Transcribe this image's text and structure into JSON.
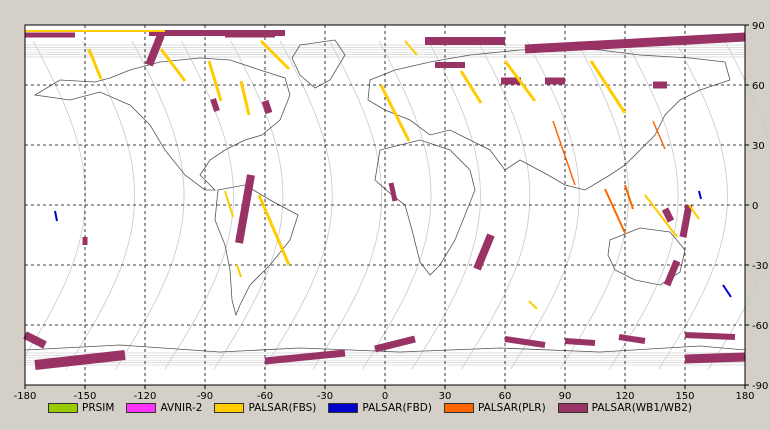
{
  "chart_data": {
    "type": "map",
    "projection": "equirectangular",
    "xlim": [
      -180,
      180
    ],
    "ylim": [
      -90,
      90
    ],
    "x_ticks": [
      "-180",
      "-150",
      "-120",
      "-90",
      "-60",
      "-30",
      "0",
      "30",
      "60",
      "90",
      "120",
      "150",
      "180"
    ],
    "y_ticks": [
      "90",
      "60",
      "30",
      "0",
      "-30",
      "-60",
      "-90"
    ],
    "grid": true,
    "legend": [
      {
        "label": "PRSIM",
        "color": "#99cc00"
      },
      {
        "label": "AVNIR-2",
        "color": "#ff33ff"
      },
      {
        "label": "PALSAR(FBS)",
        "color": "#ffcc00"
      },
      {
        "label": "PALSAR(FBD)",
        "color": "#0000cc"
      },
      {
        "label": "PALSAR(PLR)",
        "color": "#ff6600"
      },
      {
        "label": "PALSAR(WB1/WB2)",
        "color": "#993366"
      }
    ],
    "swaths": [
      {
        "mode": "PALSAR(WB1/WB2)",
        "path": [
          [
            -180,
            85
          ],
          [
            -155,
            85
          ]
        ],
        "width": 5
      },
      {
        "mode": "PALSAR(WB1/WB2)",
        "path": [
          [
            -118,
            86
          ],
          [
            -50,
            86
          ]
        ],
        "width": 6
      },
      {
        "mode": "PALSAR(WB1/WB2)",
        "path": [
          [
            -112,
            85
          ],
          [
            -118,
            70
          ]
        ],
        "width": 8
      },
      {
        "mode": "PALSAR(WB1/WB2)",
        "path": [
          [
            -80,
            85
          ],
          [
            -55,
            85
          ]
        ],
        "width": 5
      },
      {
        "mode": "PALSAR(WB1/WB2)",
        "path": [
          [
            -86,
            53
          ],
          [
            -84,
            47
          ]
        ],
        "width": 6
      },
      {
        "mode": "PALSAR(WB1/WB2)",
        "path": [
          [
            -60,
            52
          ],
          [
            -58,
            46
          ]
        ],
        "width": 7
      },
      {
        "mode": "PALSAR(WB1/WB2)",
        "path": [
          [
            -67,
            15
          ],
          [
            -73,
            -19
          ]
        ],
        "width": 8
      },
      {
        "mode": "PALSAR(WB1/WB2)",
        "path": [
          [
            -150,
            -16
          ],
          [
            -150,
            -20
          ]
        ],
        "width": 5
      },
      {
        "mode": "PALSAR(WB1/WB2)",
        "path": [
          [
            53,
            -15
          ],
          [
            46,
            -32
          ]
        ],
        "width": 8
      },
      {
        "mode": "PALSAR(WB1/WB2)",
        "path": [
          [
            20,
            82
          ],
          [
            60,
            82
          ]
        ],
        "width": 8
      },
      {
        "mode": "PALSAR(WB1/WB2)",
        "path": [
          [
            25,
            70
          ],
          [
            40,
            70
          ]
        ],
        "width": 6
      },
      {
        "mode": "PALSAR(WB1/WB2)",
        "path": [
          [
            58,
            62
          ],
          [
            68,
            62
          ]
        ],
        "width": 7
      },
      {
        "mode": "PALSAR(WB1/WB2)",
        "path": [
          [
            80,
            62
          ],
          [
            90,
            62
          ]
        ],
        "width": 7
      },
      {
        "mode": "PALSAR(WB1/WB2)",
        "path": [
          [
            70,
            78
          ],
          [
            180,
            84
          ]
        ],
        "width": 9
      },
      {
        "mode": "PALSAR(WB1/WB2)",
        "path": [
          [
            134,
            60
          ],
          [
            141,
            60
          ]
        ],
        "width": 7
      },
      {
        "mode": "PALSAR(WB1/WB2)",
        "path": [
          [
            140,
            -2
          ],
          [
            143,
            -8
          ]
        ],
        "width": 7
      },
      {
        "mode": "PALSAR(WB1/WB2)",
        "path": [
          [
            152,
            0
          ],
          [
            149,
            -16
          ]
        ],
        "width": 7
      },
      {
        "mode": "PALSAR(WB1/WB2)",
        "path": [
          [
            146,
            -28
          ],
          [
            141,
            -40
          ]
        ],
        "width": 7
      },
      {
        "mode": "PALSAR(WB1/WB2)",
        "path": [
          [
            3,
            11
          ],
          [
            5,
            2
          ]
        ],
        "width": 5
      },
      {
        "mode": "PALSAR(WB1/WB2)",
        "path": [
          [
            -180,
            -65
          ],
          [
            -170,
            -70
          ]
        ],
        "width": 8
      },
      {
        "mode": "PALSAR(WB1/WB2)",
        "path": [
          [
            -175,
            -80
          ],
          [
            -130,
            -75
          ]
        ],
        "width": 10
      },
      {
        "mode": "PALSAR(WB1/WB2)",
        "path": [
          [
            -60,
            -78
          ],
          [
            -20,
            -74
          ]
        ],
        "width": 7
      },
      {
        "mode": "PALSAR(WB1/WB2)",
        "path": [
          [
            -5,
            -72
          ],
          [
            15,
            -67
          ]
        ],
        "width": 7
      },
      {
        "mode": "PALSAR(WB1/WB2)",
        "path": [
          [
            60,
            -67
          ],
          [
            80,
            -70
          ]
        ],
        "width": 6
      },
      {
        "mode": "PALSAR(WB1/WB2)",
        "path": [
          [
            90,
            -68
          ],
          [
            105,
            -69
          ]
        ],
        "width": 6
      },
      {
        "mode": "PALSAR(WB1/WB2)",
        "path": [
          [
            117,
            -66
          ],
          [
            130,
            -68
          ]
        ],
        "width": 6
      },
      {
        "mode": "PALSAR(WB1/WB2)",
        "path": [
          [
            150,
            -65
          ],
          [
            175,
            -66
          ]
        ],
        "width": 6
      },
      {
        "mode": "PALSAR(WB1/WB2)",
        "path": [
          [
            150,
            -77
          ],
          [
            180,
            -76
          ]
        ],
        "width": 9
      },
      {
        "mode": "PALSAR(FBS)",
        "path": [
          [
            -180,
            87
          ],
          [
            -110,
            87
          ]
        ],
        "width": 2
      },
      {
        "mode": "PALSAR(FBS)",
        "path": [
          [
            -148,
            78
          ],
          [
            -142,
            63
          ]
        ],
        "width": 3
      },
      {
        "mode": "PALSAR(FBS)",
        "path": [
          [
            -112,
            78
          ],
          [
            -100,
            62
          ]
        ],
        "width": 3
      },
      {
        "mode": "PALSAR(FBS)",
        "path": [
          [
            -88,
            72
          ],
          [
            -82,
            52
          ]
        ],
        "width": 3
      },
      {
        "mode": "PALSAR(FBS)",
        "path": [
          [
            -72,
            62
          ],
          [
            -68,
            45
          ]
        ],
        "width": 3
      },
      {
        "mode": "PALSAR(FBS)",
        "path": [
          [
            -62,
            82
          ],
          [
            -48,
            68
          ]
        ],
        "width": 3
      },
      {
        "mode": "PALSAR(FBS)",
        "path": [
          [
            -80,
            7
          ],
          [
            -76,
            -6
          ]
        ],
        "width": 2
      },
      {
        "mode": "PALSAR(FBS)",
        "path": [
          [
            -63,
            5
          ],
          [
            -48,
            -30
          ]
        ],
        "width": 3
      },
      {
        "mode": "PALSAR(FBS)",
        "path": [
          [
            -74,
            -30
          ],
          [
            -72,
            -36
          ]
        ],
        "width": 2
      },
      {
        "mode": "PALSAR(FBS)",
        "path": [
          [
            -2,
            60
          ],
          [
            12,
            32
          ]
        ],
        "width": 3
      },
      {
        "mode": "PALSAR(FBS)",
        "path": [
          [
            38,
            67
          ],
          [
            48,
            51
          ]
        ],
        "width": 3
      },
      {
        "mode": "PALSAR(FBS)",
        "path": [
          [
            60,
            72
          ],
          [
            75,
            52
          ]
        ],
        "width": 3
      },
      {
        "mode": "PALSAR(FBS)",
        "path": [
          [
            103,
            72
          ],
          [
            120,
            46
          ]
        ],
        "width": 3
      },
      {
        "mode": "PALSAR(FBS)",
        "path": [
          [
            130,
            5
          ],
          [
            146,
            -16
          ]
        ],
        "width": 2
      },
      {
        "mode": "PALSAR(FBS)",
        "path": [
          [
            152,
            0
          ],
          [
            157,
            -7
          ]
        ],
        "width": 2
      },
      {
        "mode": "PALSAR(FBS)",
        "path": [
          [
            72,
            -48
          ],
          [
            76,
            -52
          ]
        ],
        "width": 2
      },
      {
        "mode": "PALSAR(FBS)",
        "path": [
          [
            16,
            75
          ],
          [
            10,
            82
          ]
        ],
        "width": 2
      },
      {
        "mode": "PALSAR(FBD)",
        "path": [
          [
            -165,
            -3
          ],
          [
            -164,
            -8
          ]
        ],
        "width": 2
      },
      {
        "mode": "PALSAR(FBD)",
        "path": [
          [
            169,
            -40
          ],
          [
            173,
            -46
          ]
        ],
        "width": 2
      },
      {
        "mode": "PALSAR(FBD)",
        "path": [
          [
            157,
            7
          ],
          [
            158,
            3
          ]
        ],
        "width": 2
      },
      {
        "mode": "PALSAR(PLR)",
        "path": [
          [
            110,
            8
          ],
          [
            120,
            -14
          ]
        ],
        "width": 2
      },
      {
        "mode": "PALSAR(PLR)",
        "path": [
          [
            84,
            42
          ],
          [
            95,
            10
          ]
        ],
        "width": 1.5
      },
      {
        "mode": "PALSAR(PLR)",
        "path": [
          [
            120,
            10
          ],
          [
            124,
            -2
          ]
        ],
        "width": 2
      },
      {
        "mode": "PALSAR(PLR)",
        "path": [
          [
            134,
            42
          ],
          [
            140,
            28
          ]
        ],
        "width": 1.5
      }
    ]
  }
}
